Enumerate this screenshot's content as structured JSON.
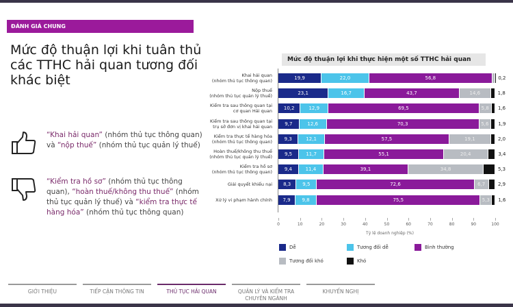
{
  "section_tag": "ĐÁNH GIÁ CHUNG",
  "page_title": "Mức độ thuận lợi khi tuân thủ các TTHC hải quan tương đối khác biệt",
  "points": [
    {
      "icon": "thumbs-up-icon",
      "parts": [
        {
          "text": "“Khai hải quan”",
          "hl": true
        },
        {
          "text": " (nhóm thủ tục thông quan) và ",
          "hl": false
        },
        {
          "text": "“nộp thuế”",
          "hl": true
        },
        {
          "text": " (nhóm thủ tục quản lý thuế)",
          "hl": false
        }
      ]
    },
    {
      "icon": "thumbs-down-icon",
      "parts": [
        {
          "text": "“Kiểm tra hồ sơ”",
          "hl": true
        },
        {
          "text": " (nhóm thủ tục thông quan), ",
          "hl": false
        },
        {
          "text": "“hoàn thuế/không thu thuế”",
          "hl": true
        },
        {
          "text": " (nhóm thủ tục quản lý thuế) và ",
          "hl": false
        },
        {
          "text": "“kiểm tra thực tế hàng hóa”",
          "hl": true
        },
        {
          "text": " (nhóm thủ tục thông quan)",
          "hl": false
        }
      ]
    }
  ],
  "chart_data": {
    "type": "bar",
    "orientation": "horizontal-stacked",
    "title": "Mức độ thuận lợi khi thực hiện một số TTHC hải quan",
    "xlabel": "Tỷ lệ doanh nghiệp (%)",
    "ylabel": "",
    "xlim": [
      0,
      100
    ],
    "xticks": [
      "0",
      "10",
      "20",
      "30",
      "40",
      "50",
      "60",
      "70",
      "80",
      "90",
      "100"
    ],
    "legend_position": "bottom",
    "categories": [
      [
        "Khai hải quan",
        "(nhóm thủ tục thông quan)"
      ],
      [
        "Nộp thuế",
        "(nhóm thủ tục quản lý thuế)"
      ],
      [
        "Kiểm tra sau thông quan tại",
        "cơ quan Hải quan"
      ],
      [
        "Kiểm tra sau thông quan tại",
        "trụ sở đơn vị khai hải quan"
      ],
      [
        "Kiểm tra thực tế hàng hóa",
        "(nhóm thủ tục thông quan)"
      ],
      [
        "Hoàn thuế/không thu thuế",
        "(nhóm thủ tục quản lý thuế)"
      ],
      [
        "Kiểm tra hồ sơ",
        "(nhóm thủ tục thông quan)"
      ],
      [
        "Giải quyết khiếu nại"
      ],
      [
        "Xử lý vi phạm hành chính"
      ]
    ],
    "series": [
      {
        "name": "Dễ",
        "color": "#1a2a8a",
        "values": [
          19.9,
          23.1,
          10.2,
          9.7,
          9.3,
          9.5,
          9.4,
          8.3,
          7.9
        ]
      },
      {
        "name": "Tương đối dễ",
        "color": "#4cc4ea",
        "values": [
          22.0,
          16.7,
          12.9,
          12.6,
          12.1,
          11.7,
          11.4,
          9.5,
          9.8
        ]
      },
      {
        "name": "Bình thường",
        "color": "#8a1a9a",
        "values": [
          56.8,
          43.7,
          69.5,
          70.3,
          57.5,
          55.1,
          39.1,
          72.6,
          75.5
        ]
      },
      {
        "name": "Tương đối khó",
        "color": "#b8bcc2",
        "values": [
          1.2,
          14.6,
          5.8,
          5.6,
          19.1,
          20.4,
          34.8,
          6.7,
          5.3
        ]
      },
      {
        "name": "Khó",
        "color": "#111111",
        "values": [
          0.2,
          1.8,
          1.6,
          1.9,
          2.0,
          3.4,
          5.3,
          2.9,
          1.6
        ]
      }
    ]
  },
  "nav": [
    {
      "label": "GIỚI THIỆU",
      "active": false
    },
    {
      "label": "TIẾP CẬN THÔNG TIN",
      "active": false
    },
    {
      "label": "THỦ TỤC HẢI QUAN",
      "active": true
    },
    {
      "label": "QUẢN LÝ VÀ KIỂM TRA CHUYÊN NGÀNH",
      "active": false
    },
    {
      "label": "KHUYẾN NGHỊ",
      "active": false
    }
  ]
}
